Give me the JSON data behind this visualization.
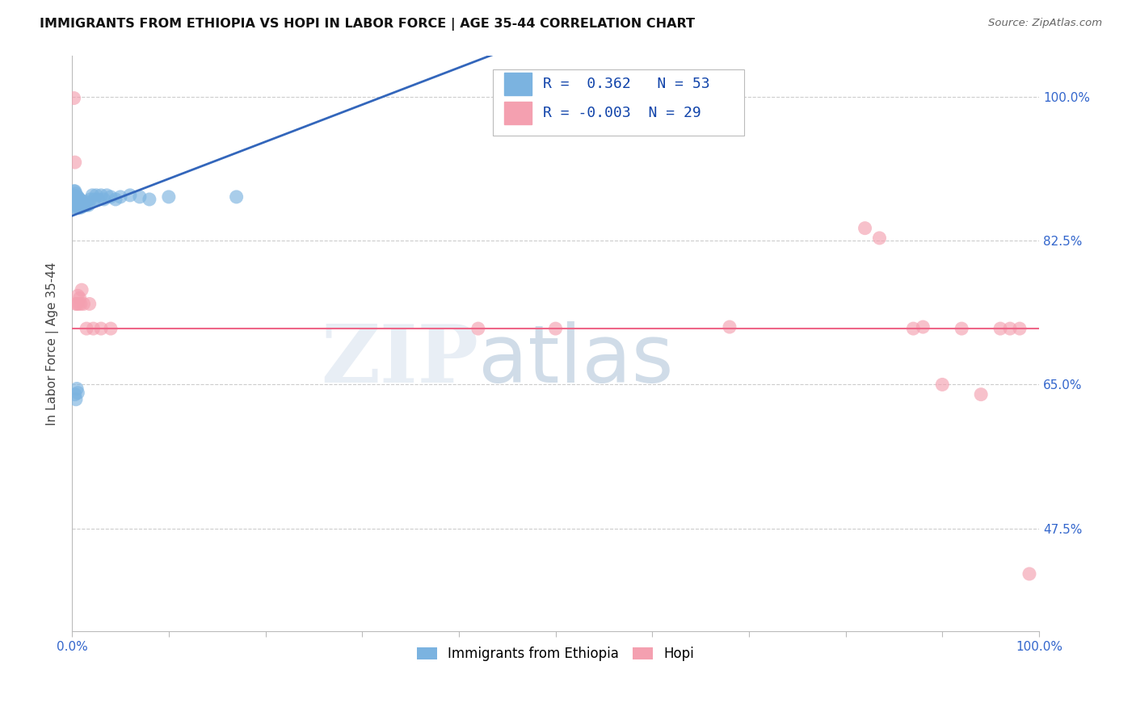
{
  "title": "IMMIGRANTS FROM ETHIOPIA VS HOPI IN LABOR FORCE | AGE 35-44 CORRELATION CHART",
  "source": "Source: ZipAtlas.com",
  "ylabel": "In Labor Force | Age 35-44",
  "xlim": [
    0.0,
    1.0
  ],
  "ylim": [
    0.35,
    1.05
  ],
  "xticks": [
    0.0,
    0.1,
    0.2,
    0.3,
    0.4,
    0.5,
    0.6,
    0.7,
    0.8,
    0.9,
    1.0
  ],
  "xticklabels": [
    "0.0%",
    "",
    "",
    "",
    "",
    "",
    "",
    "",
    "",
    "",
    "100.0%"
  ],
  "ytick_positions": [
    0.475,
    0.65,
    0.825,
    1.0
  ],
  "yticklabels_right": [
    "47.5%",
    "65.0%",
    "82.5%",
    "100.0%"
  ],
  "r_blue": 0.362,
  "n_blue": 53,
  "r_pink": -0.003,
  "n_pink": 29,
  "blue_color": "#7BB3E0",
  "pink_color": "#F4A0B0",
  "trend_blue_color": "#3366BB",
  "trend_pink_color": "#EE6688",
  "legend_blue_label": "Immigrants from Ethiopia",
  "legend_pink_label": "Hopi",
  "background_color": "#FFFFFF",
  "grid_color": "#CCCCCC",
  "blue_x": [
    0.001,
    0.001,
    0.002,
    0.002,
    0.002,
    0.003,
    0.003,
    0.003,
    0.003,
    0.004,
    0.004,
    0.004,
    0.004,
    0.005,
    0.005,
    0.005,
    0.006,
    0.006,
    0.006,
    0.007,
    0.007,
    0.007,
    0.008,
    0.008,
    0.009,
    0.009,
    0.01,
    0.011,
    0.012,
    0.013,
    0.014,
    0.015,
    0.017,
    0.019,
    0.021,
    0.023,
    0.025,
    0.027,
    0.03,
    0.033,
    0.036,
    0.04,
    0.045,
    0.05,
    0.06,
    0.07,
    0.08,
    0.1,
    0.17,
    0.003,
    0.004,
    0.005,
    0.006
  ],
  "blue_y": [
    0.88,
    0.875,
    0.885,
    0.878,
    0.872,
    0.885,
    0.878,
    0.872,
    0.865,
    0.882,
    0.876,
    0.87,
    0.865,
    0.878,
    0.873,
    0.867,
    0.878,
    0.873,
    0.867,
    0.876,
    0.87,
    0.865,
    0.875,
    0.868,
    0.872,
    0.865,
    0.873,
    0.87,
    0.867,
    0.868,
    0.872,
    0.868,
    0.868,
    0.875,
    0.88,
    0.875,
    0.88,
    0.875,
    0.88,
    0.875,
    0.88,
    0.878,
    0.875,
    0.878,
    0.88,
    0.878,
    0.875,
    0.878,
    0.878,
    0.638,
    0.632,
    0.645,
    0.64
  ],
  "pink_x": [
    0.002,
    0.003,
    0.004,
    0.005,
    0.006,
    0.007,
    0.008,
    0.009,
    0.01,
    0.012,
    0.015,
    0.018,
    0.022,
    0.03,
    0.04,
    0.42,
    0.5,
    0.68,
    0.82,
    0.835,
    0.87,
    0.88,
    0.9,
    0.92,
    0.94,
    0.96,
    0.97,
    0.98,
    0.99
  ],
  "pink_y": [
    0.998,
    0.92,
    0.748,
    0.748,
    0.758,
    0.748,
    0.755,
    0.748,
    0.765,
    0.748,
    0.718,
    0.748,
    0.718,
    0.718,
    0.718,
    0.718,
    0.718,
    0.72,
    0.84,
    0.828,
    0.718,
    0.72,
    0.65,
    0.718,
    0.638,
    0.718,
    0.718,
    0.718,
    0.42
  ]
}
